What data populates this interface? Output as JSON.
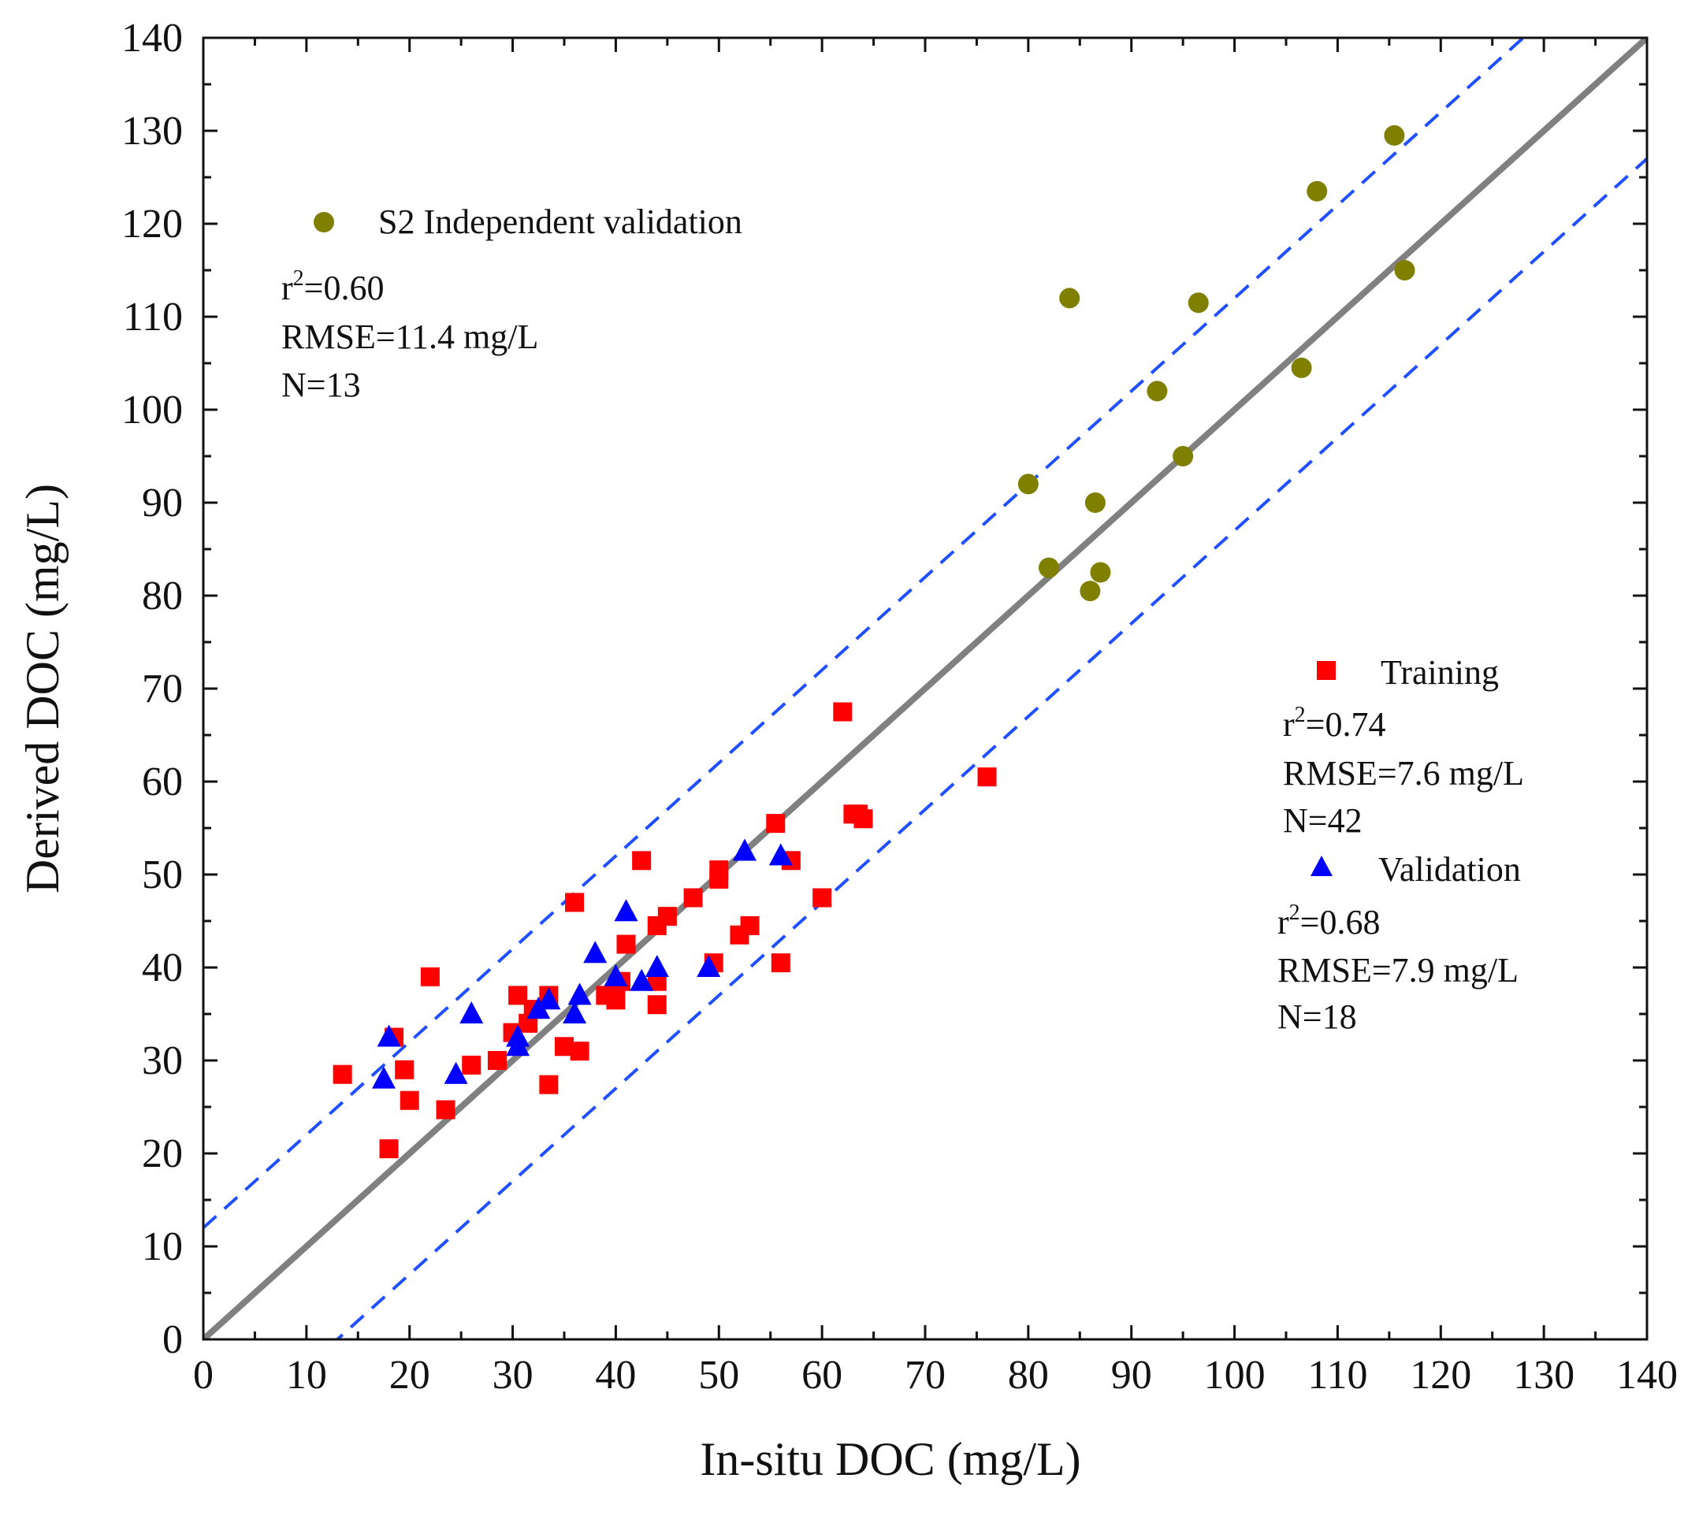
{
  "chart_data": {
    "type": "scatter",
    "title": "",
    "xlabel": "In-situ DOC (mg/L)",
    "ylabel": "Derived DOC (mg/L)",
    "xlim": [
      0,
      140
    ],
    "ylim": [
      0,
      140
    ],
    "xticks": [
      "0",
      "10",
      "20",
      "30",
      "40",
      "50",
      "60",
      "70",
      "80",
      "90",
      "100",
      "110",
      "120",
      "130",
      "140"
    ],
    "yticks": [
      "0",
      "10",
      "20",
      "30",
      "40",
      "50",
      "60",
      "70",
      "80",
      "90",
      "100",
      "110",
      "120",
      "130",
      "140"
    ],
    "grid": false,
    "reference_lines": [
      {
        "name": "1:1 line",
        "style": "solid",
        "color": "#808080",
        "intercept": 0,
        "slope": 1
      },
      {
        "name": "upper bound",
        "style": "dashed",
        "color": "#1f4fff",
        "intercept": 12,
        "slope": 1
      },
      {
        "name": "lower bound",
        "style": "dashed",
        "color": "#1f4fff",
        "intercept": -13,
        "slope": 1
      }
    ],
    "series": [
      {
        "name": "S2 Independent validation",
        "marker": "circle",
        "color": "#7f7f00",
        "stats": {
          "r2_prefix": "r",
          "r2_sup": "2",
          "r2_value": "=0.60",
          "rmse": "RMSE=11.4 mg/L",
          "n": "N=13"
        },
        "points": [
          [
            80,
            92
          ],
          [
            82,
            83
          ],
          [
            84,
            112
          ],
          [
            86,
            80.5
          ],
          [
            86.5,
            90
          ],
          [
            87,
            82.5
          ],
          [
            92.5,
            102
          ],
          [
            95,
            95
          ],
          [
            96.5,
            111.5
          ],
          [
            106.5,
            104.5
          ],
          [
            108,
            123.5
          ],
          [
            115.5,
            129.5
          ],
          [
            116.5,
            115
          ]
        ]
      },
      {
        "name": "Training",
        "marker": "square",
        "color": "#ff0000",
        "stats": {
          "r2_prefix": "r",
          "r2_sup": "2",
          "r2_value": "=0.74",
          "rmse": "RMSE=7.6 mg/L",
          "n": "N=42"
        },
        "points": [
          [
            13.5,
            28.5
          ],
          [
            18,
            20.5
          ],
          [
            18.5,
            32.5
          ],
          [
            19.5,
            29
          ],
          [
            20,
            25.7
          ],
          [
            22,
            39
          ],
          [
            23.5,
            24.7
          ],
          [
            26,
            29.5
          ],
          [
            28.5,
            30
          ],
          [
            30,
            33
          ],
          [
            30.5,
            37
          ],
          [
            31.5,
            34
          ],
          [
            33.5,
            27.4
          ],
          [
            33.5,
            37
          ],
          [
            35,
            31.5
          ],
          [
            36,
            47
          ],
          [
            36.5,
            31
          ],
          [
            39,
            37
          ],
          [
            40,
            36.5
          ],
          [
            40.5,
            38.5
          ],
          [
            41,
            42.5
          ],
          [
            42.5,
            51.5
          ],
          [
            44,
            36
          ],
          [
            44,
            38.5
          ],
          [
            44,
            44.5
          ],
          [
            45,
            45.5
          ],
          [
            47.5,
            47.5
          ],
          [
            49.5,
            40.5
          ],
          [
            50,
            50.5
          ],
          [
            50,
            49.5
          ],
          [
            52,
            43.5
          ],
          [
            53,
            44.5
          ],
          [
            55.5,
            55.5
          ],
          [
            56,
            40.5
          ],
          [
            57,
            51.5
          ],
          [
            60,
            47.5
          ],
          [
            62,
            67.5
          ],
          [
            63,
            56.5
          ],
          [
            63.5,
            56.5
          ],
          [
            64,
            56
          ],
          [
            76,
            60.5
          ],
          [
            32,
            35.5
          ]
        ]
      },
      {
        "name": "Validation",
        "marker": "triangle",
        "color": "#0000ff",
        "stats": {
          "r2_prefix": "r",
          "r2_sup": "2",
          "r2_value": "=0.68",
          "rmse": "RMSE=7.9 mg/L",
          "n": "N=18"
        },
        "points": [
          [
            17.5,
            28
          ],
          [
            18,
            32.5
          ],
          [
            24.5,
            28.5
          ],
          [
            26,
            35
          ],
          [
            30.5,
            31.5
          ],
          [
            30.5,
            32.5
          ],
          [
            32.5,
            35.5
          ],
          [
            33.5,
            36.5
          ],
          [
            36,
            35
          ],
          [
            36.5,
            37
          ],
          [
            38,
            41.5
          ],
          [
            40,
            39
          ],
          [
            41,
            46
          ],
          [
            42.5,
            38.5
          ],
          [
            44,
            40
          ],
          [
            49,
            40
          ],
          [
            52.5,
            52.5
          ],
          [
            56,
            52
          ]
        ]
      }
    ]
  }
}
